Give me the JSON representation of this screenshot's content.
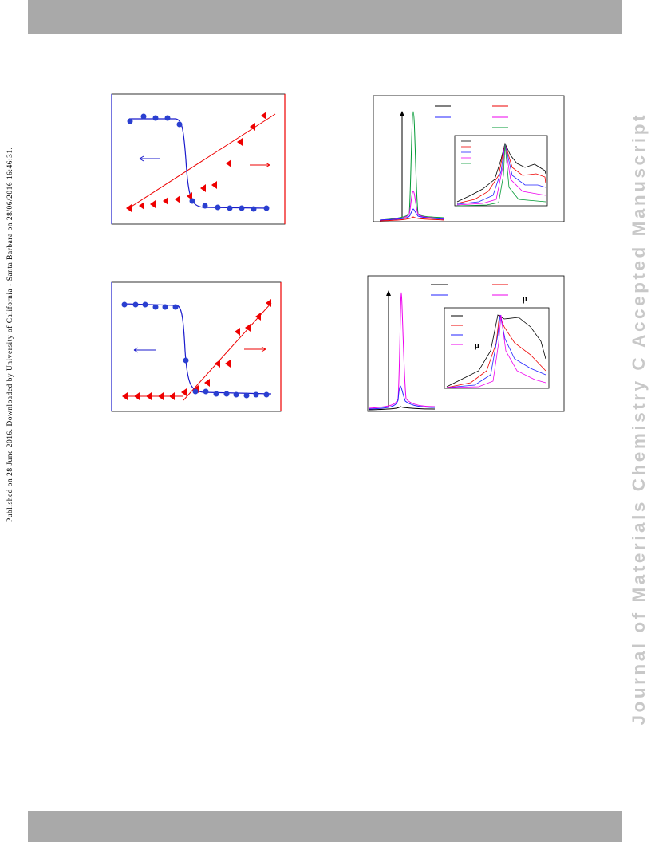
{
  "header": {
    "side_note": "Published on 28 June 2016. Downloaded by University of California - Santa Barbara on 28/06/2016 16:46:31."
  },
  "watermark": "Journal of Materials Chemistry C Accepted Manuscript",
  "figure_labels": [
    "μ",
    "μ"
  ]
}
